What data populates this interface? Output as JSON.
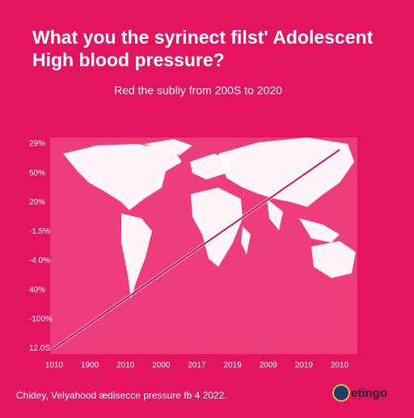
{
  "chart_data": {
    "type": "line",
    "title": [
      "What you the syrinect filst' Adolescent",
      "High blood pressure?"
    ],
    "subtitle": "Red the subliy from 200S to 2020",
    "categories": [
      "1010",
      "1900",
      "2010",
      "2000",
      "2017",
      "2019",
      "2009",
      "2019",
      "2010"
    ],
    "series": [
      {
        "color": "#c8165c",
        "values": [
          0,
          0.85,
          1.7,
          2.55,
          3.4,
          4.25,
          5.1,
          5.95,
          6.8
        ]
      }
    ],
    "ylim": [
      0,
      7.2
    ],
    "yticks": [
      {
        "value": 0,
        "label": "12.0S"
      },
      {
        "value": 1,
        "label": "-100%"
      },
      {
        "value": 2,
        "label": "40%"
      },
      {
        "value": 3,
        "label": "-4.0%"
      },
      {
        "value": 4,
        "label": "-1.5%"
      },
      {
        "value": 5,
        "label": "20%"
      },
      {
        "value": 6,
        "label": "50%"
      },
      {
        "value": 7,
        "label": "29%"
      }
    ],
    "grid": false,
    "footer": "Chidey, Velyahood ædisecce pressure fb 4 2022.",
    "logo": "etingo"
  }
}
